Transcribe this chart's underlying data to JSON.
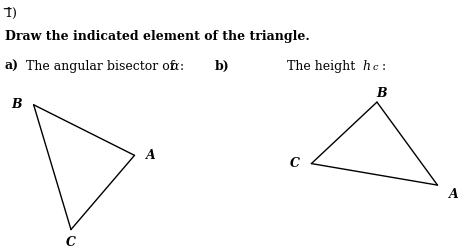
{
  "title_number": "1)",
  "instruction": "Draw the indicated element of the triangle.",
  "part_a_label": "a)",
  "part_b_label": "b)",
  "triangle_a": {
    "A": [
      0.62,
      0.52
    ],
    "B": [
      0.08,
      0.82
    ],
    "C": [
      0.28,
      0.08
    ]
  },
  "triangle_b": {
    "A": [
      0.92,
      0.28
    ],
    "B": [
      0.68,
      0.82
    ],
    "C": [
      0.42,
      0.42
    ]
  },
  "bg_color": "#ffffff",
  "line_color": "#000000",
  "text_color": "#000000",
  "tri_a_map": [
    0.04,
    0.4,
    0.02,
    0.68
  ],
  "tri_b_map": [
    0.44,
    0.54,
    0.08,
    0.62
  ]
}
